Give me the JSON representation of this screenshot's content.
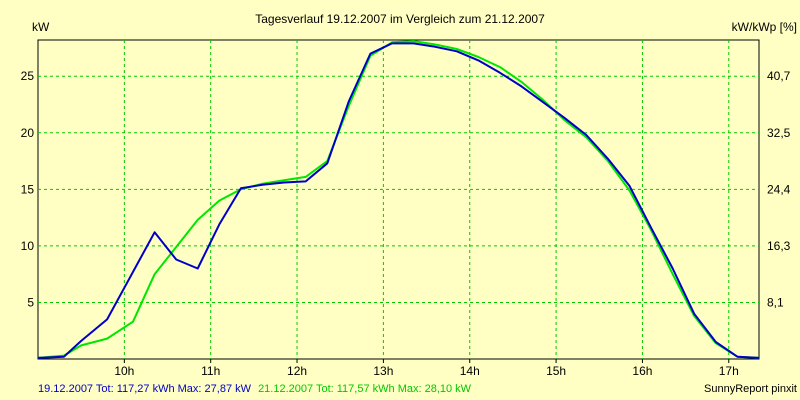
{
  "chart_data": {
    "type": "line",
    "title": "Tagesverlauf 19.12.2007 im Vergleich zum 21.12.2007",
    "ylabel_left": "kW",
    "ylabel_right": "kW/kWp [%]",
    "x_ticks": [
      "10h",
      "11h",
      "12h",
      "13h",
      "14h",
      "15h",
      "16h",
      "17h"
    ],
    "x_tick_values": [
      10,
      11,
      12,
      13,
      14,
      15,
      16,
      17
    ],
    "xlim": [
      9.0,
      17.35
    ],
    "y_left_ticks": [
      5,
      10,
      15,
      20,
      25
    ],
    "ylim": [
      0,
      28.2
    ],
    "y_right_ticks": [
      "8,1",
      "16,3",
      "24,4",
      "32,5",
      "40,7"
    ],
    "y_right_tick_kw": [
      5,
      10,
      15,
      20,
      25
    ],
    "grid": true,
    "series": [
      {
        "name": "19.12.2007",
        "color": "#0000c8",
        "x": [
          9.0,
          9.3,
          9.5,
          9.8,
          10.1,
          10.35,
          10.6,
          10.85,
          11.1,
          11.35,
          11.6,
          11.85,
          12.1,
          12.35,
          12.6,
          12.85,
          13.1,
          13.35,
          13.6,
          13.85,
          14.1,
          14.35,
          14.6,
          14.85,
          15.1,
          15.35,
          15.6,
          15.85,
          16.1,
          16.35,
          16.6,
          16.85,
          17.1,
          17.35
        ],
        "values": [
          0.1,
          0.2,
          1.6,
          3.5,
          7.7,
          11.2,
          8.8,
          8.0,
          11.9,
          15.1,
          15.4,
          15.6,
          15.7,
          17.3,
          22.8,
          27.0,
          27.9,
          27.9,
          27.6,
          27.2,
          26.4,
          25.3,
          24.1,
          22.7,
          21.3,
          19.8,
          17.7,
          15.3,
          11.6,
          8.0,
          4.0,
          1.5,
          0.2,
          0.1
        ]
      },
      {
        "name": "21.12.2007",
        "color": "#00e600",
        "x": [
          9.0,
          9.3,
          9.5,
          9.8,
          10.1,
          10.35,
          10.6,
          10.85,
          11.1,
          11.35,
          11.6,
          11.85,
          12.1,
          12.35,
          12.6,
          12.85,
          13.1,
          13.35,
          13.6,
          13.85,
          14.1,
          14.35,
          14.6,
          14.85,
          15.1,
          15.35,
          15.6,
          15.85,
          16.1,
          16.35,
          16.6,
          16.85,
          17.1,
          17.35
        ],
        "values": [
          0.1,
          0.3,
          1.2,
          1.8,
          3.3,
          7.5,
          9.9,
          12.3,
          14.0,
          15.0,
          15.5,
          15.8,
          16.1,
          17.5,
          22.4,
          26.8,
          28.0,
          28.1,
          27.8,
          27.4,
          26.7,
          25.8,
          24.5,
          22.9,
          21.1,
          19.6,
          17.5,
          14.9,
          11.4,
          7.5,
          3.8,
          1.4,
          0.2,
          0.1
        ]
      }
    ]
  },
  "legend": {
    "series1_text": "19.12.2007 Tot: 117,27 kWh Max: 27,87 kW",
    "series1_color": "#0000c8",
    "series2_text": "21.12.2007 Tot: 117,57 kWh Max: 28,10 kW",
    "series2_color": "#00c800"
  },
  "credit": "SunnyReport pinxit"
}
